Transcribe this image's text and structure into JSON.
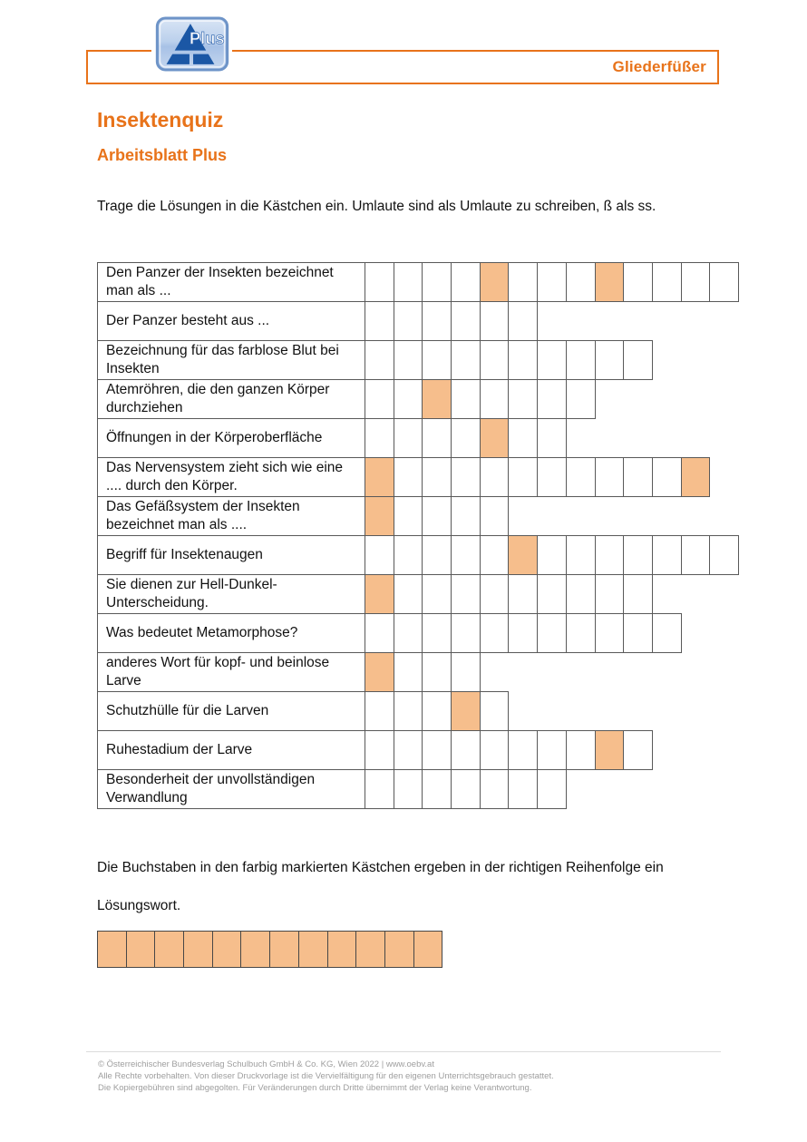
{
  "header": {
    "logo_text": "Plus",
    "topic": "Gliederfüßer"
  },
  "title": "Insektenquiz",
  "subtitle": "Arbeitsblatt Plus",
  "intro": "Trage die Lösungen in die Kästchen ein. Umlaute sind als Umlaute zu schreiben, ß als ss.",
  "quiz": {
    "rows": [
      {
        "clue": "Den Panzer der Insekten bezeichnet man als ...",
        "cells": 13,
        "highlighted": [
          5,
          9
        ]
      },
      {
        "clue": "Der Panzer besteht aus ...",
        "cells": 6,
        "highlighted": []
      },
      {
        "clue": "Bezeichnung für das farblose Blut bei Insekten",
        "cells": 10,
        "highlighted": []
      },
      {
        "clue": "Atemröhren, die den ganzen Körper durchziehen",
        "cells": 8,
        "highlighted": [
          3
        ]
      },
      {
        "clue": "Öffnungen in der Körperoberfläche",
        "cells": 7,
        "highlighted": [
          5
        ]
      },
      {
        "clue": "Das Nervensystem zieht sich wie eine .... durch den Körper.",
        "cells": 12,
        "highlighted": [
          1,
          12
        ]
      },
      {
        "clue": "Das Gefäßsystem der Insekten bezeichnet man als ....",
        "cells": 5,
        "highlighted": [
          1
        ]
      },
      {
        "clue": "Begriff für Insektenaugen",
        "cells": 13,
        "highlighted": [
          6
        ]
      },
      {
        "clue": "Sie dienen zur Hell-Dunkel-Unterscheidung.",
        "cells": 10,
        "highlighted": [
          1
        ]
      },
      {
        "clue": "Was bedeutet Metamorphose?",
        "cells": 11,
        "highlighted": []
      },
      {
        "clue": "anderes Wort für kopf- und beinlose Larve",
        "cells": 4,
        "highlighted": [
          1
        ]
      },
      {
        "clue": "Schutzhülle für die Larven",
        "cells": 5,
        "highlighted": [
          4
        ]
      },
      {
        "clue": "Ruhestadium der Larve",
        "cells": 10,
        "highlighted": [
          9
        ]
      },
      {
        "clue": "Besonderheit der unvollständigen Verwandlung",
        "cells": 7,
        "highlighted": []
      }
    ]
  },
  "solution": {
    "instruction_line1": "Die Buchstaben in den farbig markierten Kästchen ergeben in der richtigen Reihenfolge ein",
    "instruction_line2": "Lösungswort.",
    "cells": 12
  },
  "footer": {
    "lines": [
      "© Österreichischer Bundesverlag Schulbuch GmbH & Co. KG, Wien 2022 | www.oebv.at",
      "Alle Rechte vorbehalten. Von dieser Druckvorlage ist die Vervielfältigung für den eigenen Unterrichtsgebrauch gestattet.",
      "Die Kopiergebühren sind abgegolten. Für Veränderungen durch Dritte übernimmt der Verlag keine Verantwortung."
    ]
  },
  "colors": {
    "accent_orange": "#E8731A",
    "cell_highlight": "#F6BE8C",
    "grid_border": "#595959"
  }
}
